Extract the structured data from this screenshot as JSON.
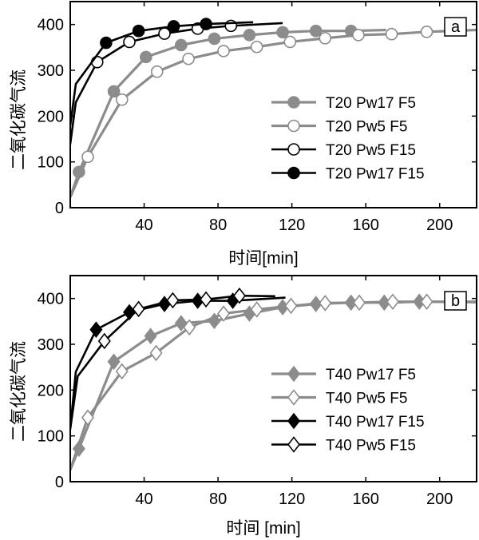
{
  "chart_data": [
    {
      "type": "line",
      "panel_label": "a",
      "xlabel": "时间[min]",
      "ylabel": "二氧化碳气流",
      "xlim": [
        0,
        220
      ],
      "ylim": [
        0,
        450
      ],
      "xticks": [
        40,
        80,
        120,
        160,
        200
      ],
      "yticks": [
        0,
        100,
        200,
        300,
        400
      ],
      "grid": false,
      "legend_position": "center-right",
      "series": [
        {
          "name": "T20 Pw17 F5",
          "color": "#8c8c8c",
          "marker": "circle",
          "filled": true,
          "x": [
            0,
            4.7,
            23.6,
            41,
            60,
            78,
            97,
            115,
            133,
            152,
            171
          ],
          "y": [
            23,
            78,
            254,
            329,
            355,
            369,
            377,
            383,
            386,
            386,
            388
          ],
          "markers_x": [
            4.7,
            23.6,
            41,
            60,
            78,
            97,
            115,
            133,
            152
          ]
        },
        {
          "name": "T20 Pw5 F5",
          "color": "#8c8c8c",
          "marker": "circle",
          "filled": false,
          "x": [
            0,
            9.5,
            28,
            47,
            64,
            83,
            101,
            119,
            138,
            156,
            174,
            193,
            220
          ],
          "y": [
            23,
            111,
            236,
            297,
            325,
            342,
            351,
            362,
            370,
            377,
            379,
            384,
            388
          ],
          "markers_x": [
            9.5,
            28,
            47,
            64,
            83,
            101,
            119,
            138,
            156,
            174,
            193
          ]
        },
        {
          "name": "T20 Pw5 F15",
          "color": "#000000",
          "marker": "circle",
          "filled": false,
          "x": [
            0,
            3,
            14.6,
            32,
            51,
            69,
            87,
            115
          ],
          "y": [
            139,
            230,
            318,
            362,
            380,
            391,
            397,
            403
          ],
          "markers_x": [
            14.6,
            32,
            51,
            69,
            87
          ]
        },
        {
          "name": "T20 Pw17 F15",
          "color": "#000000",
          "marker": "circle",
          "filled": true,
          "x": [
            0,
            3,
            19.4,
            37,
            56,
            73.5,
            99
          ],
          "y": [
            179,
            270,
            360,
            386,
            396,
            401,
            405
          ],
          "markers_x": [
            19.4,
            37,
            56,
            73.5
          ]
        }
      ]
    },
    {
      "type": "line",
      "panel_label": "b",
      "xlabel": "时间 [min]",
      "ylabel": "二氧化碳气流",
      "xlim": [
        0,
        220
      ],
      "ylim": [
        0,
        450
      ],
      "xticks": [
        40,
        80,
        120,
        160,
        200
      ],
      "yticks": [
        0,
        100,
        200,
        300,
        400
      ],
      "grid": false,
      "legend_position": "center-right",
      "series": [
        {
          "name": "T40 Pw17 F5",
          "color": "#8c8c8c",
          "marker": "diamond",
          "filled": true,
          "x": [
            0,
            4.7,
            23.6,
            43.5,
            60,
            78,
            97,
            115,
            133,
            152,
            170,
            189,
            220
          ],
          "y": [
            26,
            72,
            262,
            318,
            346,
            351,
            367,
            381,
            388,
            391,
            391,
            393,
            393
          ],
          "markers_x": [
            4.7,
            23.6,
            43.5,
            60,
            78,
            97,
            115,
            133,
            152,
            170,
            189
          ]
        },
        {
          "name": "T40 Pw5 F5",
          "color": "#8c8c8c",
          "marker": "diamond",
          "filled": false,
          "x": [
            0,
            9.5,
            28,
            46.5,
            64.5,
            83,
            101,
            119.5,
            138,
            156.5,
            174.6,
            193,
            220
          ],
          "y": [
            26,
            140,
            241,
            281,
            337,
            367,
            376,
            384,
            390,
            391,
            393,
            393,
            392
          ],
          "markers_x": [
            9.5,
            28,
            46.5,
            64.5,
            83,
            101,
            119.5,
            138,
            156.5,
            174.6,
            193
          ]
        },
        {
          "name": "T40 Pw17 F15",
          "color": "#000000",
          "marker": "diamond",
          "filled": true,
          "x": [
            0,
            3,
            14,
            32,
            51,
            69,
            88,
            116.5
          ],
          "y": [
            115,
            240,
            332,
            370,
            388,
            395,
            395,
            402
          ],
          "markers_x": [
            14,
            32,
            51,
            69,
            88
          ]
        },
        {
          "name": "T40 Pw5 F15",
          "color": "#000000",
          "marker": "diamond",
          "filled": false,
          "x": [
            0,
            4,
            18.5,
            37,
            55.5,
            73.5,
            91.6,
            111
          ],
          "y": [
            115,
            230,
            307,
            377,
            396,
            398,
            406,
            405
          ],
          "markers_x": [
            18.5,
            37,
            55.5,
            73.5,
            91.6
          ]
        }
      ]
    }
  ]
}
